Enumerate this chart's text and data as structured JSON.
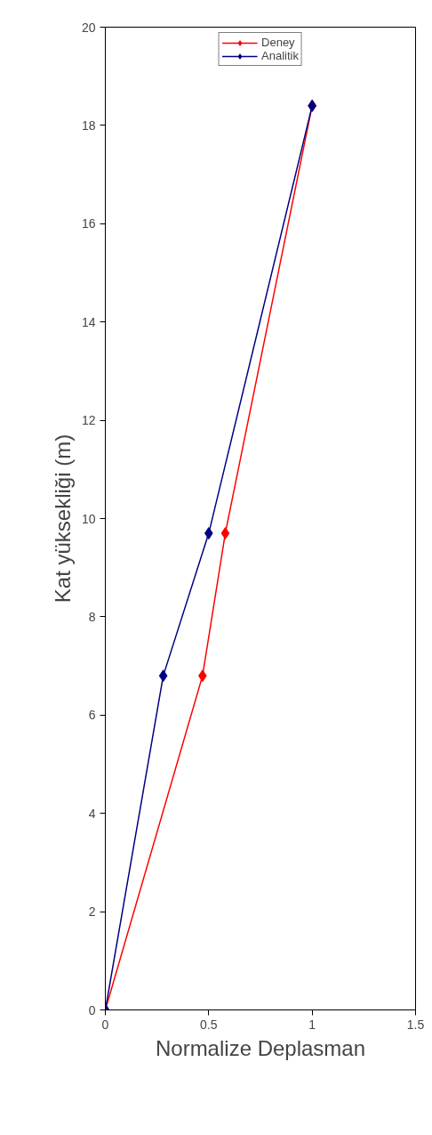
{
  "chart_data": {
    "type": "line",
    "xlabel": "Normalize Deplasman",
    "ylabel": "Kat yüksekliği (m)",
    "xlim": [
      0,
      1.5
    ],
    "xticks": [
      0,
      0.5,
      1,
      1.5
    ],
    "ylim": [
      0,
      20
    ],
    "yticks": [
      0,
      2,
      4,
      6,
      8,
      10,
      12,
      14,
      16,
      18,
      20
    ],
    "grid": false,
    "legend": "top",
    "marker": "diamond",
    "line_style": "solid",
    "series": [
      {
        "name": "Deney",
        "color": "#ff0000",
        "x": [
          0,
          0.47,
          0.58,
          1
        ],
        "values": [
          0,
          6.8,
          9.7,
          18.4
        ]
      },
      {
        "name": "Analitik",
        "color": "#000080",
        "x": [
          0,
          0.28,
          0.5,
          1
        ],
        "values": [
          0,
          6.8,
          9.7,
          18.4
        ]
      }
    ]
  }
}
